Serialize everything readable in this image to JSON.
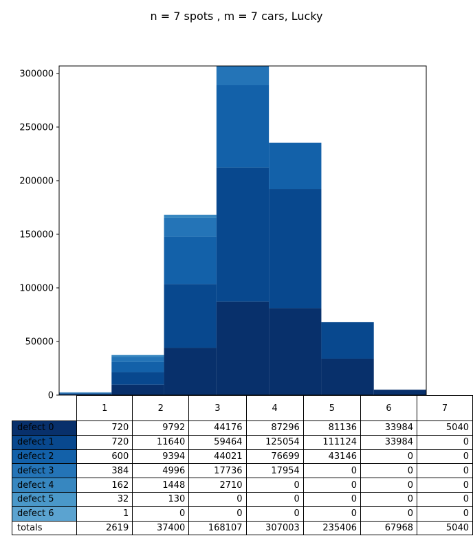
{
  "chart_data": {
    "type": "bar",
    "stacked": true,
    "title": "n = 7 spots , m = 7 cars, Lucky",
    "categories": [
      "1",
      "2",
      "3",
      "4",
      "5",
      "6",
      "7"
    ],
    "series": [
      {
        "name": "defect 0",
        "color": "#08306b",
        "values": [
          720,
          9792,
          44176,
          87296,
          81136,
          33984,
          5040
        ]
      },
      {
        "name": "defect 1",
        "color": "#08488e",
        "values": [
          720,
          11640,
          59464,
          125054,
          111124,
          33984,
          0
        ]
      },
      {
        "name": "defect 2",
        "color": "#1361a9",
        "values": [
          600,
          9394,
          44021,
          76699,
          43146,
          0,
          0
        ]
      },
      {
        "name": "defect 3",
        "color": "#2474b7",
        "values": [
          384,
          4996,
          17736,
          17954,
          0,
          0,
          0
        ]
      },
      {
        "name": "defect 4",
        "color": "#3787c0",
        "values": [
          162,
          1448,
          2710,
          0,
          0,
          0,
          0
        ]
      },
      {
        "name": "defect 5",
        "color": "#4a98c9",
        "values": [
          32,
          130,
          0,
          0,
          0,
          0,
          0
        ]
      },
      {
        "name": "defect 6",
        "color": "#5ba3d0",
        "values": [
          1,
          0,
          0,
          0,
          0,
          0,
          0
        ]
      }
    ],
    "totals_label": "totals",
    "totals": [
      2619,
      37400,
      168107,
      307003,
      235406,
      67968,
      5040
    ],
    "ylim": [
      0,
      307003
    ],
    "yticks": [
      0,
      50000,
      100000,
      150000,
      200000,
      250000,
      300000
    ],
    "xlabel": "",
    "ylabel": "",
    "grid": false
  }
}
